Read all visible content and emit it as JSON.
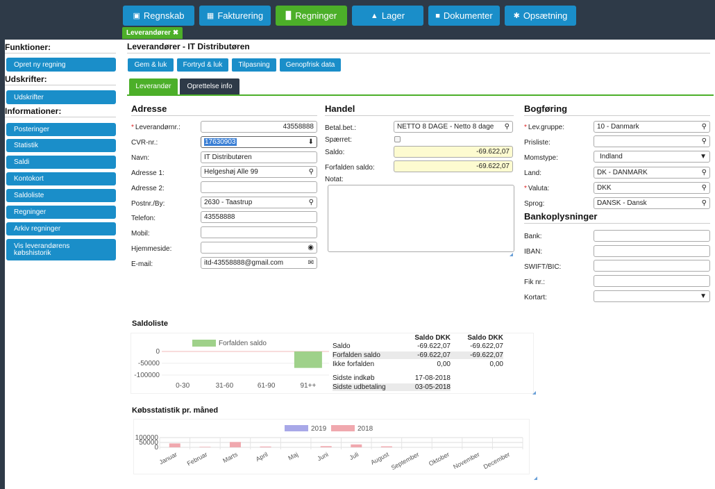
{
  "nav": [
    {
      "label": "Regnskab",
      "icon": "briefcase-icon",
      "active": false
    },
    {
      "label": "Fakturering",
      "icon": "clipboard-icon",
      "active": false
    },
    {
      "label": "Regninger",
      "icon": "factory-icon",
      "active": true
    },
    {
      "label": "Lager",
      "icon": "cubes-icon",
      "active": false
    },
    {
      "label": "Dokumenter",
      "icon": "file-icon",
      "active": false
    },
    {
      "label": "Opsætning",
      "icon": "gear-icon",
      "active": false
    }
  ],
  "subtab": {
    "label": "Leverandører"
  },
  "sidebar": {
    "functions_heading": "Funktioner:",
    "functions": [
      "Opret ny regning"
    ],
    "prints_heading": "Udskrifter:",
    "prints": [
      "Udskrifter"
    ],
    "info_heading": "Informationer:",
    "info": [
      "Posteringer",
      "Statistik",
      "Saldi",
      "Kontokort",
      "Saldoliste",
      "Regninger",
      "Arkiv regninger",
      "Vis leverandørens købshistorik"
    ]
  },
  "page_title": "Leverandører - IT Distributøren",
  "actions": [
    "Gem & luk",
    "Fortryd & luk",
    "Tilpasning",
    "Genopfrisk data"
  ],
  "tabs": [
    {
      "label": "Leverandør",
      "active": true
    },
    {
      "label": "Oprettelse info",
      "active": false
    }
  ],
  "address": {
    "heading": "Adresse",
    "fields": [
      {
        "label": "Leverandørnr.:",
        "value": "43558888",
        "required": true,
        "icon": ""
      },
      {
        "label": "CVR-nr.:",
        "value": "17630903",
        "required": false,
        "icon": "download-icon"
      },
      {
        "label": "Navn:",
        "value": "IT Distributøren",
        "required": false,
        "icon": ""
      },
      {
        "label": "Adresse 1:",
        "value": "Helgeshøj Alle 99",
        "required": false,
        "icon": "map-marker-icon"
      },
      {
        "label": "Adresse 2:",
        "value": "",
        "required": false,
        "icon": ""
      },
      {
        "label": "Postnr./By:",
        "value": "2630 - Taastrup",
        "required": false,
        "icon": "search-icon"
      },
      {
        "label": "Telefon:",
        "value": "43558888",
        "required": false,
        "icon": ""
      },
      {
        "label": "Mobil:",
        "value": "",
        "required": false,
        "icon": ""
      },
      {
        "label": "Hjemmeside:",
        "value": "",
        "required": false,
        "icon": "globe-icon"
      },
      {
        "label": "E-mail:",
        "value": "itd-43558888@gmail.com",
        "required": false,
        "icon": "envelope-icon"
      }
    ]
  },
  "trade": {
    "heading": "Handel",
    "payment_label": "Betal.bet.:",
    "payment_value": "NETTO 8 DAGE - Netto 8 dage",
    "blocked_label": "Spærret:",
    "balance_label": "Saldo:",
    "balance_value": "-69.622,07",
    "due_label": "Forfalden saldo:",
    "due_value": "-69.622,07",
    "note_label": "Notat:"
  },
  "booking": {
    "heading": "Bogføring",
    "fields": [
      {
        "label": "Lev.gruppe:",
        "value": "10 - Danmark",
        "required": true,
        "icon": "search-icon"
      },
      {
        "label": "Prisliste:",
        "value": "",
        "required": false,
        "icon": "search-icon"
      },
      {
        "label": "Momstype:",
        "value": "Indland",
        "required": false,
        "icon": "caret-down-icon"
      },
      {
        "label": "Land:",
        "value": "DK - DANMARK",
        "required": false,
        "icon": "search-icon"
      },
      {
        "label": "Valuta:",
        "value": "DKK",
        "required": true,
        "icon": "search-icon"
      },
      {
        "label": "Sprog:",
        "value": "DANSK - Dansk",
        "required": false,
        "icon": "search-icon"
      }
    ]
  },
  "bank": {
    "heading": "Bankoplysninger",
    "fields": [
      {
        "label": "Bank:",
        "value": "",
        "icon": ""
      },
      {
        "label": "IBAN:",
        "value": "",
        "icon": ""
      },
      {
        "label": "SWIFT/BIC:",
        "value": "",
        "icon": ""
      },
      {
        "label": "Fik nr.:",
        "value": "",
        "icon": ""
      },
      {
        "label": "Kortart:",
        "value": "",
        "icon": "caret-down-icon"
      }
    ]
  },
  "saldoliste": {
    "title": "Saldoliste",
    "chart": {
      "legend": "Forfalden saldo",
      "categories": [
        "0-30",
        "31-60",
        "61-90",
        "91++"
      ],
      "values": [
        0,
        0,
        0,
        -69622.07
      ],
      "y_ticks": [
        "0",
        "-50000",
        "-100000"
      ],
      "ylim": [
        -100000,
        0
      ],
      "color": "#9fd18a"
    },
    "table": {
      "headers": [
        "",
        "Saldo DKK",
        "Saldo DKK"
      ],
      "rows": [
        [
          "Saldo",
          "-69.622,07",
          "-69.622,07"
        ],
        [
          "Forfalden saldo",
          "-69.622,07",
          "-69.622,07"
        ],
        [
          "Ikke forfalden",
          "0,00",
          "0,00"
        ]
      ],
      "extra": [
        [
          "Sidste indkøb",
          "17-08-2018"
        ],
        [
          "Sidste udbetaling",
          "03-05-2018"
        ]
      ]
    }
  },
  "purchases": {
    "title": "Købsstatistik pr. måned",
    "legend": [
      {
        "name": "2019",
        "color": "#a8a8e8"
      },
      {
        "name": "2018",
        "color": "#f0a8ae"
      }
    ],
    "y_ticks": [
      "100000",
      "50000",
      "0"
    ],
    "months": [
      "Januar",
      "Februar",
      "Marts",
      "April",
      "Maj",
      "Juni",
      "Juli",
      "August",
      "September",
      "Oktober",
      "November",
      "December"
    ],
    "values_2018": [
      40000,
      5000,
      55000,
      8000,
      0,
      12000,
      30000,
      10000,
      0,
      0,
      0,
      0
    ]
  },
  "chart_data": [
    {
      "type": "bar",
      "title": "Saldoliste",
      "categories": [
        "0-30",
        "31-60",
        "61-90",
        "91++"
      ],
      "series": [
        {
          "name": "Forfalden saldo",
          "values": [
            0,
            0,
            0,
            -69622.07
          ]
        }
      ],
      "ylim": [
        -100000,
        0
      ]
    },
    {
      "type": "bar",
      "title": "Købsstatistik pr. måned",
      "categories": [
        "Januar",
        "Februar",
        "Marts",
        "April",
        "Maj",
        "Juni",
        "Juli",
        "August",
        "September",
        "Oktober",
        "November",
        "December"
      ],
      "series": [
        {
          "name": "2019",
          "values": [
            0,
            0,
            0,
            0,
            0,
            0,
            0,
            0,
            0,
            0,
            0,
            0
          ]
        },
        {
          "name": "2018",
          "values": [
            40000,
            5000,
            55000,
            8000,
            0,
            12000,
            30000,
            10000,
            0,
            0,
            0,
            0
          ]
        }
      ],
      "ylim": [
        0,
        100000
      ]
    }
  ]
}
